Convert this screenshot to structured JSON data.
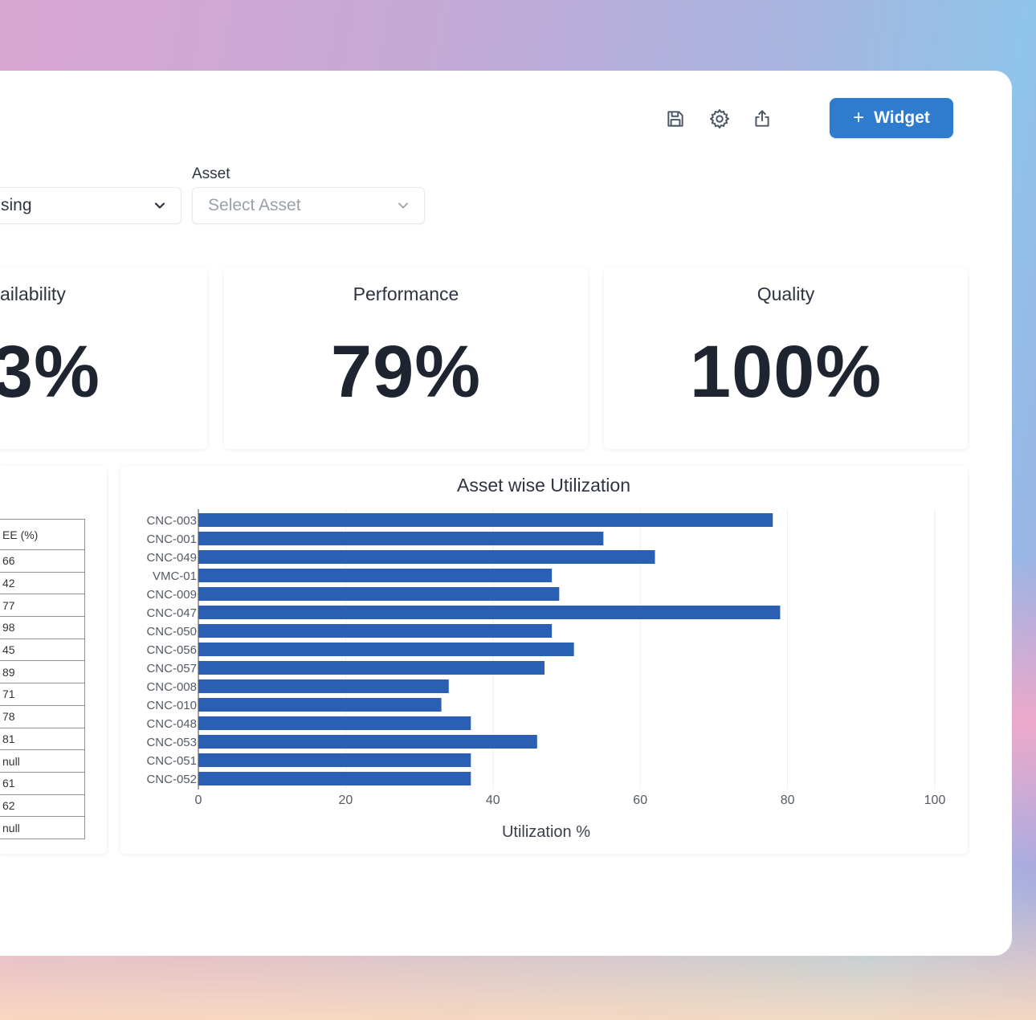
{
  "toolbar": {
    "save_icon": "save-icon",
    "settings_icon": "gear-icon",
    "share_icon": "share-icon",
    "widget_button": {
      "plus": "+",
      "label": "Widget"
    }
  },
  "filters": {
    "first": {
      "value": "sing"
    },
    "asset": {
      "label": "Asset",
      "placeholder": "Select Asset"
    }
  },
  "kpis": [
    {
      "title": "ailability",
      "value": "3%"
    },
    {
      "title": "Performance",
      "value": "79%"
    },
    {
      "title": "Quality",
      "value": "100%"
    }
  ],
  "table": {
    "header": "EE (%)",
    "rows": [
      "66",
      "42",
      "77",
      "98",
      "45",
      "89",
      "71",
      "78",
      "81",
      "null",
      "61",
      "62",
      "null"
    ]
  },
  "chart_data": {
    "type": "bar",
    "orientation": "horizontal",
    "title": "Asset wise Utilization",
    "xlabel": "Utilization %",
    "ylabel": "",
    "xlim": [
      0,
      100
    ],
    "xticks": [
      0,
      20,
      40,
      60,
      80,
      100
    ],
    "categories": [
      "CNC-003",
      "CNC-001",
      "CNC-049",
      "VMC-01",
      "CNC-009",
      "CNC-047",
      "CNC-050",
      "CNC-056",
      "CNC-057",
      "CNC-008",
      "CNC-010",
      "CNC-048",
      "CNC-053",
      "CNC-051",
      "CNC-052"
    ],
    "values": [
      78,
      55,
      62,
      48,
      49,
      79,
      48,
      51,
      47,
      34,
      33,
      37,
      46,
      37,
      37
    ],
    "bar_color": "#2b5fb4",
    "grid": true
  }
}
